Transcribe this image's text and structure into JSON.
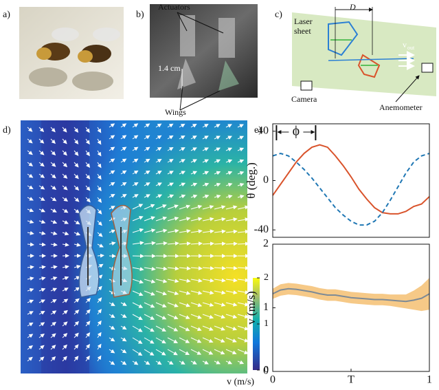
{
  "panels": {
    "a": {
      "label": "a)"
    },
    "b": {
      "label": "b)",
      "actuators": "Actuators",
      "scale": "1.4 cm",
      "wings": "Wings"
    },
    "c": {
      "label": "c)",
      "distance": "D",
      "laser_sheet": [
        "Laser",
        "sheet"
      ],
      "velocity": {
        "symbol": "v",
        "subscript": "out"
      },
      "camera": "Camera",
      "anemometer": "Anemometer"
    },
    "d": {
      "label": "d)",
      "colorbar": {
        "label": "v (m/s)",
        "lim": [
          0,
          2
        ],
        "ticks": [
          0,
          1,
          2
        ]
      }
    },
    "e": {
      "label": "e)"
    }
  },
  "chart_data": [
    {
      "type": "line",
      "ylabel": "θ (deg.)",
      "annotation": "ϕ",
      "x": [
        0,
        0.05,
        0.1,
        0.15,
        0.2,
        0.25,
        0.3,
        0.35,
        0.4,
        0.45,
        0.5,
        0.55,
        0.6,
        0.65,
        0.7,
        0.75,
        0.8,
        0.85,
        0.9,
        0.95,
        1
      ],
      "xlim": [
        0,
        1
      ],
      "ylim": [
        -46,
        46
      ],
      "yticks": [
        40,
        0,
        -40
      ],
      "series": [
        {
          "color": "#d9532b",
          "values": [
            -12,
            -3,
            6,
            15,
            22,
            27,
            29,
            27,
            20,
            12,
            3,
            -7,
            -15,
            -22,
            -26,
            -27,
            -27,
            -25,
            -21,
            -19,
            -13
          ]
        },
        {
          "color": "#1f77b4",
          "dashed": true,
          "values": [
            20,
            22,
            20,
            15,
            9,
            2,
            -6,
            -14,
            -22,
            -28,
            -33,
            -36,
            -36,
            -33,
            -26,
            -16,
            -5,
            6,
            15,
            20,
            22
          ]
        }
      ]
    },
    {
      "type": "line",
      "ylabel": "v (m/s)",
      "x": [
        0,
        0.05,
        0.1,
        0.15,
        0.2,
        0.25,
        0.3,
        0.35,
        0.4,
        0.45,
        0.5,
        0.55,
        0.6,
        0.65,
        0.7,
        0.75,
        0.8,
        0.85,
        0.9,
        0.95,
        1
      ],
      "xlim": [
        0,
        1
      ],
      "ylim": [
        0,
        2
      ],
      "yticks": [
        0,
        1,
        2
      ],
      "xticks": [
        0,
        {
          "value": 0.5,
          "label": "T"
        },
        1
      ],
      "series": [
        {
          "color": "#7d8a96",
          "band_color": "#f6c987",
          "values": [
            1.22,
            1.28,
            1.3,
            1.29,
            1.27,
            1.25,
            1.22,
            1.2,
            1.2,
            1.18,
            1.16,
            1.15,
            1.14,
            1.13,
            1.13,
            1.12,
            1.11,
            1.1,
            1.12,
            1.15,
            1.22
          ],
          "errors": [
            0.08,
            0.09,
            0.09,
            0.09,
            0.09,
            0.09,
            0.09,
            0.09,
            0.09,
            0.09,
            0.09,
            0.09,
            0.09,
            0.09,
            0.09,
            0.09,
            0.1,
            0.11,
            0.15,
            0.2,
            0.25
          ]
        }
      ]
    }
  ]
}
